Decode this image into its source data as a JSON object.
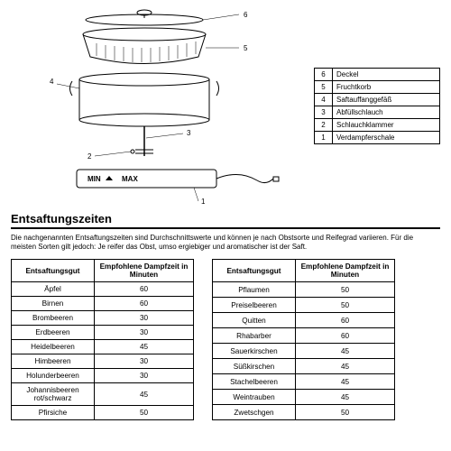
{
  "legend": [
    {
      "n": "6",
      "t": "Deckel"
    },
    {
      "n": "5",
      "t": "Fruchtkorb"
    },
    {
      "n": "4",
      "t": "Saftauffanggefäß"
    },
    {
      "n": "3",
      "t": "Abfüllschlauch"
    },
    {
      "n": "2",
      "t": "Schlauchklammer"
    },
    {
      "n": "1",
      "t": "Verdampferschale"
    }
  ],
  "section_title": "Entsaftungszeiten",
  "intro": "Die nachgenannten Entsaftungszeiten sind Durchschnittswerte und können je nach Obstsorte und Reifegrad variieren. Für die meisten Sorten gilt jedoch: Je reifer das Obst, umso ergiebiger und aromatischer ist der Saft.",
  "col1": "Entsaftungsgut",
  "col2": "Empfohlene Dampfzeit in Minuten",
  "left": [
    {
      "a": "Äpfel",
      "b": "60"
    },
    {
      "a": "Birnen",
      "b": "60"
    },
    {
      "a": "Brombeeren",
      "b": "30"
    },
    {
      "a": "Erdbeeren",
      "b": "30"
    },
    {
      "a": "Heidelbeeren",
      "b": "45"
    },
    {
      "a": "Himbeeren",
      "b": "30"
    },
    {
      "a": "Holunderbeeren",
      "b": "30"
    },
    {
      "a": "Johannisbeeren rot/schwarz",
      "b": "45"
    },
    {
      "a": "Pfirsiche",
      "b": "50"
    }
  ],
  "right": [
    {
      "a": "Pflaumen",
      "b": "50"
    },
    {
      "a": "Preiselbeeren",
      "b": "50"
    },
    {
      "a": "Quitten",
      "b": "60"
    },
    {
      "a": "Rhabarber",
      "b": "60"
    },
    {
      "a": "Sauerkirschen",
      "b": "45"
    },
    {
      "a": "Süßkirschen",
      "b": "45"
    },
    {
      "a": "Stachelbeeren",
      "b": "45"
    },
    {
      "a": "Weintrauben",
      "b": "45"
    },
    {
      "a": "Zwetschgen",
      "b": "50"
    }
  ],
  "dlabels": {
    "d1": "1",
    "d2": "2",
    "d3": "3",
    "d4": "4",
    "d5": "5",
    "d6": "6",
    "min": "MIN",
    "max": "MAX"
  }
}
